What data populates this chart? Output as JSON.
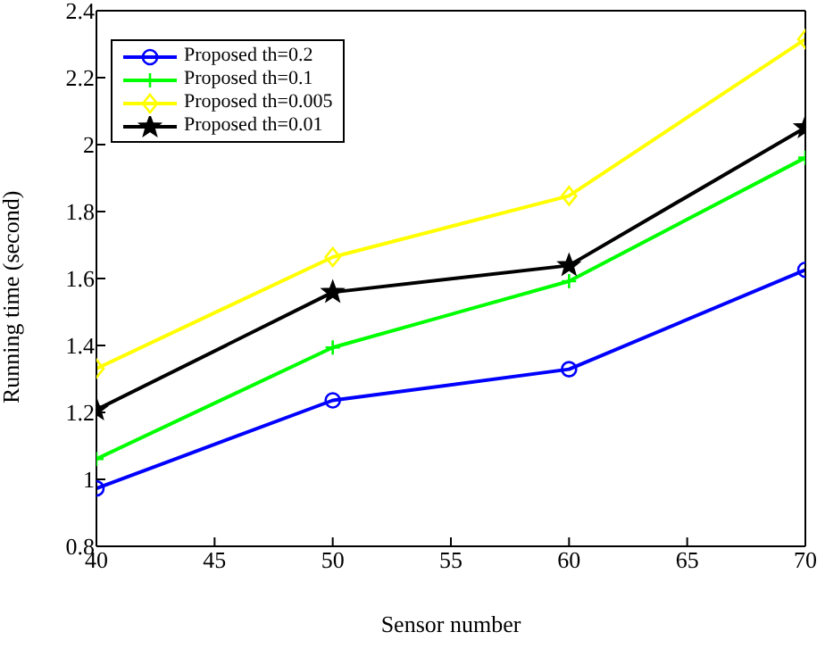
{
  "chart_data": {
    "type": "line",
    "xlabel": "Sensor number",
    "ylabel": "Running time (second)",
    "x": [
      40,
      50,
      60,
      70
    ],
    "series": [
      {
        "name": "Proposed th=0.2",
        "color": "#0000ff",
        "marker": "circle",
        "values": [
          0.973,
          1.236,
          1.329,
          1.626
        ]
      },
      {
        "name": "Proposed th=0.1",
        "color": "#00ff00",
        "marker": "cross",
        "values": [
          1.061,
          1.394,
          1.592,
          1.961
        ]
      },
      {
        "name": "Proposed th=0.005",
        "color": "#ffff00",
        "marker": "diamond",
        "values": [
          1.331,
          1.664,
          1.847,
          2.315
        ]
      },
      {
        "name": "Proposed th=0.01",
        "color": "#000000",
        "marker": "star",
        "values": [
          1.208,
          1.559,
          1.639,
          2.051
        ]
      }
    ],
    "xlim": [
      40,
      70
    ],
    "xticks": [
      40,
      45,
      50,
      55,
      60,
      65,
      70
    ],
    "ylim": [
      0.8,
      2.4
    ],
    "yticks": [
      0.8,
      1,
      1.2,
      1.4,
      1.6,
      1.8,
      2,
      2.2,
      2.4
    ],
    "grid": false,
    "legend": "top left",
    "line_style": "solid"
  }
}
